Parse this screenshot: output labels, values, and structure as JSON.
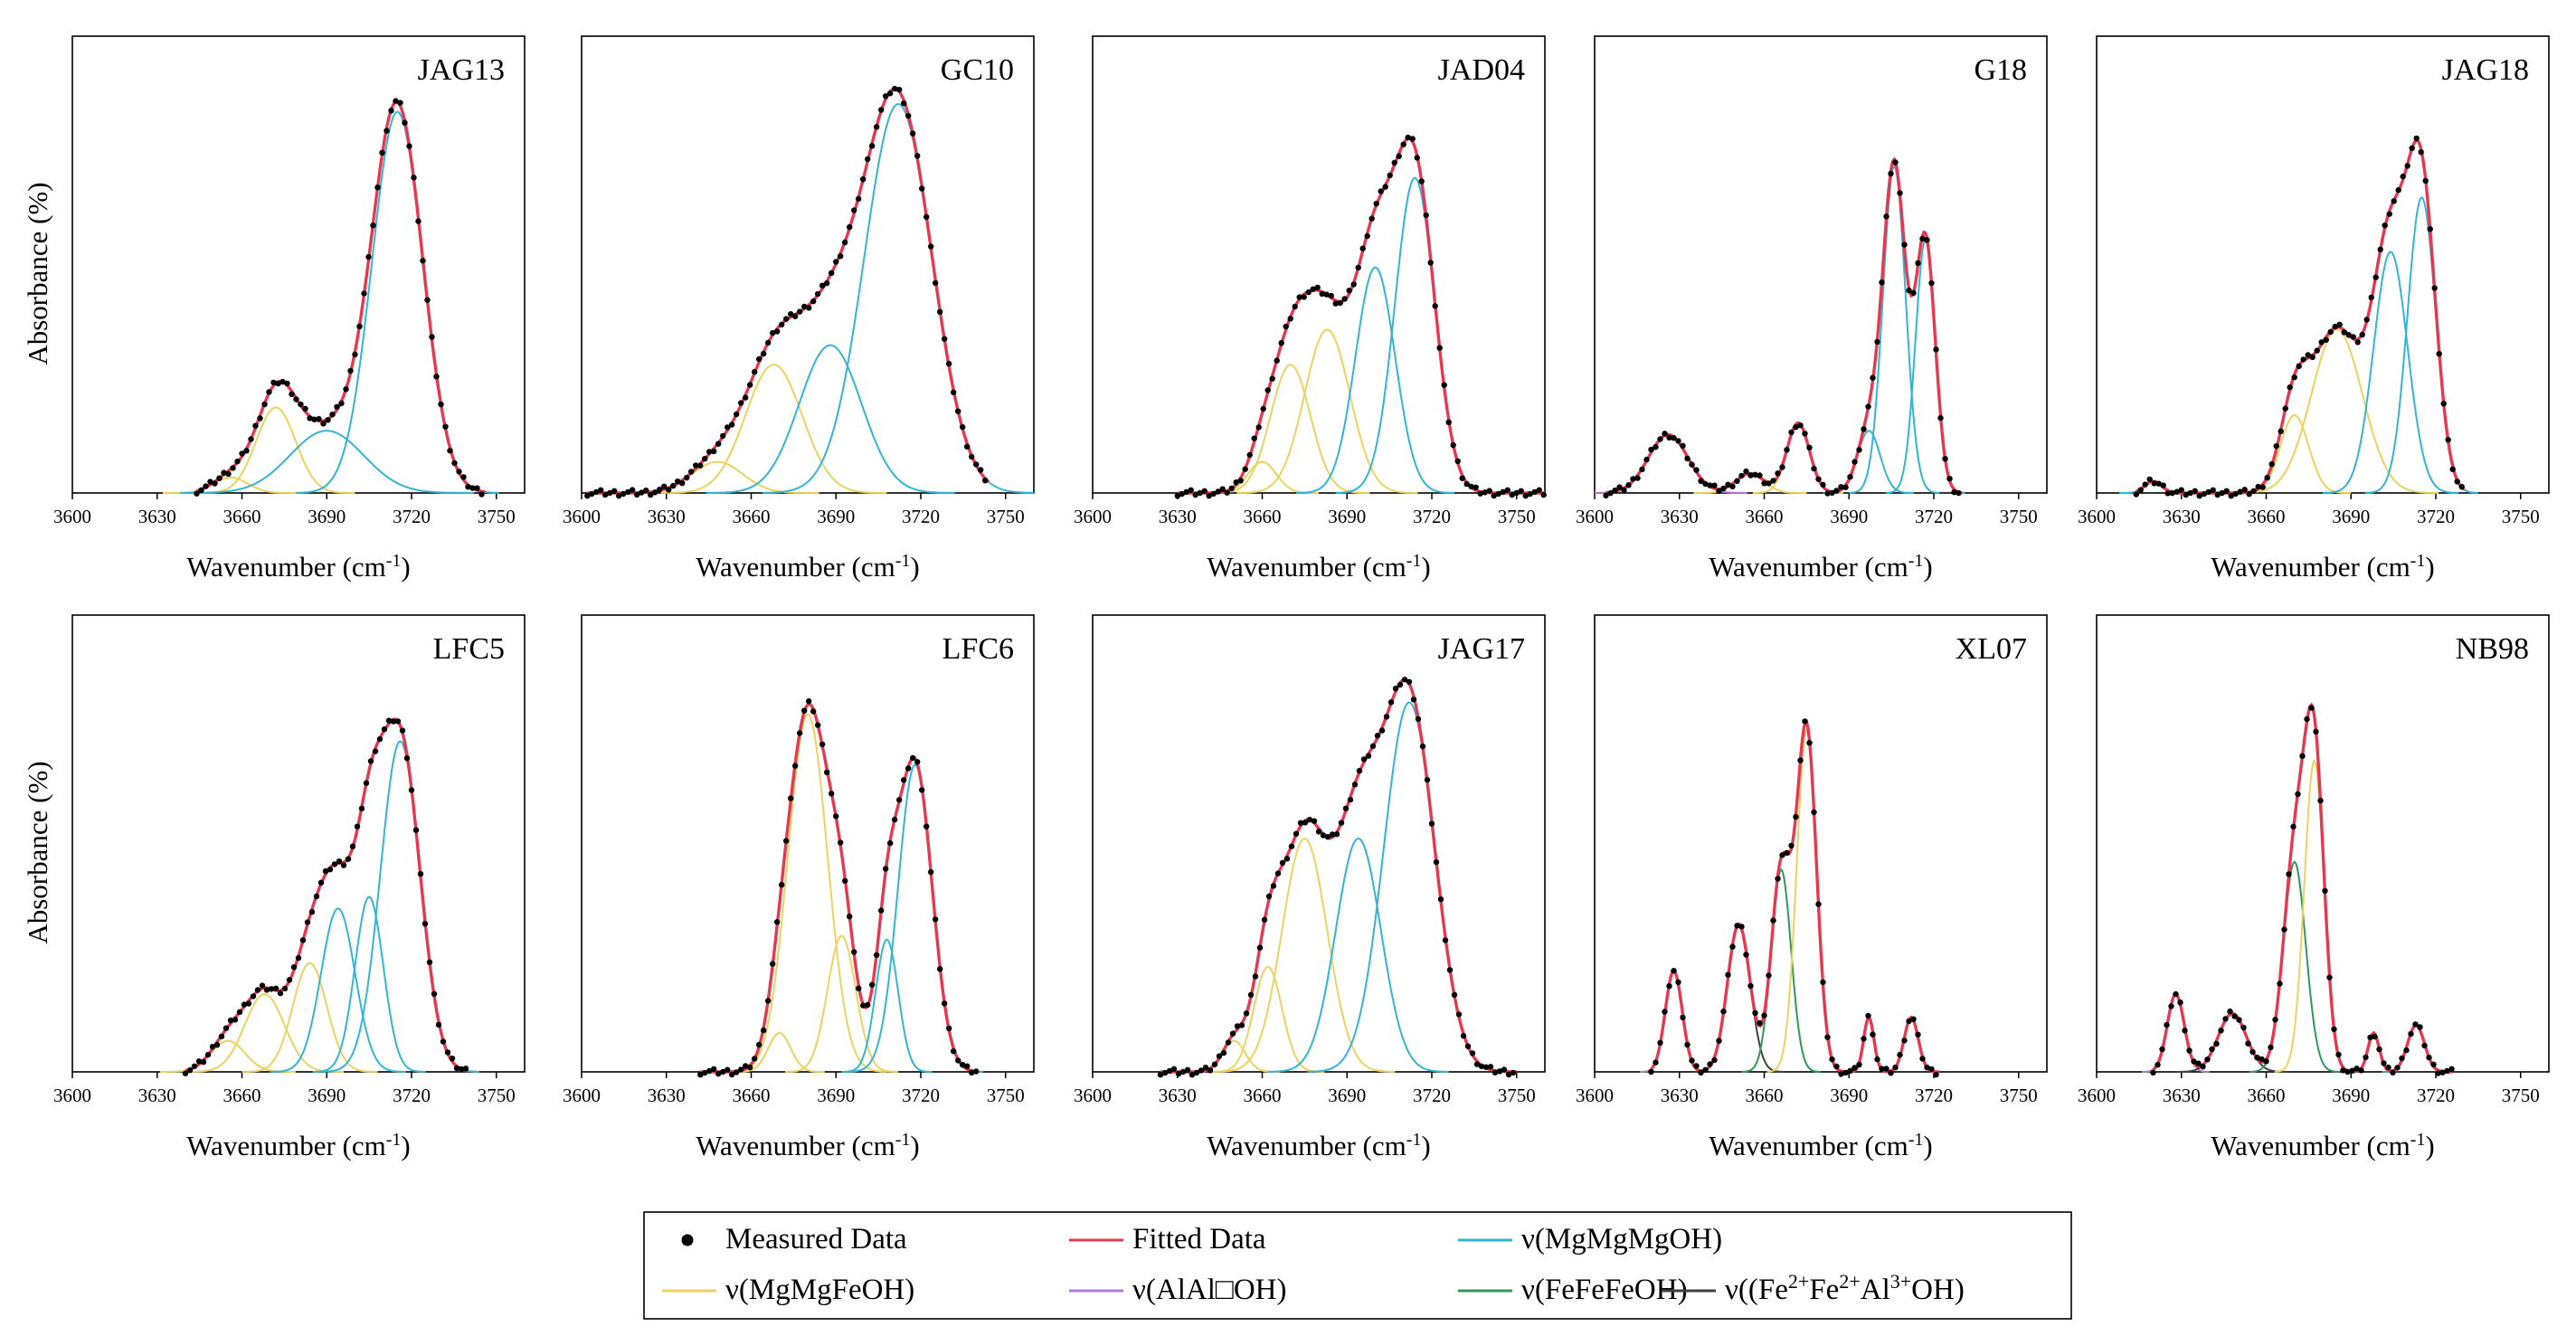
{
  "figure": {
    "ylabel": "Absorbance (%)",
    "xlabel": "Wavenumber (cm",
    "xlabel_sup": "-1",
    "xlabel_close": ")"
  },
  "legend": {
    "items": [
      {
        "key": "measured",
        "label": "Measured Data",
        "color": "#000000",
        "marker": "dot"
      },
      {
        "key": "fitted",
        "label": "Fitted Data",
        "color": "#e8384f",
        "marker": "line"
      },
      {
        "key": "mgmgmg",
        "label": "ν(MgMgMgOH)",
        "color": "#33b5d6",
        "marker": "line"
      },
      {
        "key": "mgmgfe",
        "label": "ν(MgMgFeOH)",
        "color": "#ecd25f",
        "marker": "line"
      },
      {
        "key": "alal",
        "label": "ν(AlAl□OH)",
        "color": "#b27ad6",
        "marker": "line"
      },
      {
        "key": "fefefe",
        "label": "ν(FeFeFeOH)",
        "color": "#2e9a57",
        "marker": "line"
      },
      {
        "key": "fefeal",
        "label": "ν((Fe",
        "label_parts": [
          "ν((Fe",
          "2+",
          "Fe",
          "2+",
          "Al",
          "3+",
          "OH)"
        ],
        "color": "#404040",
        "marker": "line"
      }
    ]
  },
  "chart_data": [
    {
      "id": "JAG13",
      "type": "line",
      "title": "JAG13",
      "xlim": [
        3600,
        3760
      ],
      "ylim": [
        0,
        1
      ],
      "xticks": [
        3600,
        3630,
        3660,
        3690,
        3720,
        3750
      ],
      "xlabel": "Wavenumber (cm-1)",
      "ylabel": "Absorbance (%)",
      "peaks": [
        {
          "type": "mgmgfe",
          "center": 3656,
          "height": 0.04,
          "width": 6
        },
        {
          "type": "mgmgfe",
          "center": 3672,
          "height": 0.22,
          "width": 7
        },
        {
          "type": "mgmgmg",
          "center": 3690,
          "height": 0.16,
          "width": 13
        },
        {
          "type": "mgmgmg",
          "center": 3715,
          "height": 0.98,
          "width": 9
        }
      ],
      "measured_range": [
        3644,
        3746
      ]
    },
    {
      "id": "GC10",
      "type": "line",
      "title": "GC10",
      "xlim": [
        3600,
        3760
      ],
      "ylim": [
        0,
        1
      ],
      "xticks": [
        3600,
        3630,
        3660,
        3690,
        3720,
        3750
      ],
      "xlabel": "Wavenumber (cm-1)",
      "ylabel": "Absorbance (%)",
      "peaks": [
        {
          "type": "mgmgfe",
          "center": 3648,
          "height": 0.08,
          "width": 9
        },
        {
          "type": "mgmgfe",
          "center": 3668,
          "height": 0.33,
          "width": 10
        },
        {
          "type": "mgmgmg",
          "center": 3688,
          "height": 0.38,
          "width": 11
        },
        {
          "type": "mgmgmg",
          "center": 3712,
          "height": 1.0,
          "width": 12
        }
      ],
      "measured_range": [
        3602,
        3744
      ]
    },
    {
      "id": "JAD04",
      "type": "line",
      "title": "JAD04",
      "xlim": [
        3600,
        3760
      ],
      "ylim": [
        0,
        1
      ],
      "xticks": [
        3600,
        3630,
        3660,
        3690,
        3720,
        3750
      ],
      "xlabel": "Wavenumber (cm-1)",
      "ylabel": "Absorbance (%)",
      "peaks": [
        {
          "type": "mgmgfe",
          "center": 3660,
          "height": 0.08,
          "width": 5
        },
        {
          "type": "mgmgfe",
          "center": 3670,
          "height": 0.33,
          "width": 7
        },
        {
          "type": "mgmgfe",
          "center": 3683,
          "height": 0.42,
          "width": 8
        },
        {
          "type": "mgmgmg",
          "center": 3700,
          "height": 0.58,
          "width": 7
        },
        {
          "type": "mgmgmg",
          "center": 3714,
          "height": 0.81,
          "width": 7
        }
      ],
      "measured_range": [
        3630,
        3760
      ]
    },
    {
      "id": "G18",
      "type": "line",
      "title": "G18",
      "xlim": [
        3600,
        3760
      ],
      "ylim": [
        0,
        1
      ],
      "xticks": [
        3600,
        3630,
        3660,
        3690,
        3720,
        3750
      ],
      "xlabel": "Wavenumber (cm-1)",
      "ylabel": "Absorbance (%)",
      "peaks": [
        {
          "type": "alal",
          "center": 3626,
          "height": 0.15,
          "width": 7
        },
        {
          "type": "mgmgfe",
          "center": 3655,
          "height": 0.05,
          "width": 5
        },
        {
          "type": "mgmgfe",
          "center": 3672,
          "height": 0.18,
          "width": 4
        },
        {
          "type": "mgmgmg",
          "center": 3697,
          "height": 0.16,
          "width": 4
        },
        {
          "type": "mgmgmg",
          "center": 3706,
          "height": 0.84,
          "width": 4
        },
        {
          "type": "mgmgmg",
          "center": 3717,
          "height": 0.65,
          "width": 3.5
        }
      ],
      "measured_range": [
        3604,
        3730
      ]
    },
    {
      "id": "JAG18",
      "type": "line",
      "title": "JAG18",
      "xlim": [
        3600,
        3760
      ],
      "ylim": [
        0,
        1
      ],
      "xticks": [
        3600,
        3630,
        3660,
        3690,
        3720,
        3750
      ],
      "xlabel": "Wavenumber (cm-1)",
      "ylabel": "Absorbance (%)",
      "peaks": [
        {
          "type": "mgmgmg",
          "center": 3620,
          "height": 0.03,
          "width": 3
        },
        {
          "type": "mgmgfe",
          "center": 3670,
          "height": 0.2,
          "width": 5
        },
        {
          "type": "mgmgfe",
          "center": 3685,
          "height": 0.42,
          "width": 9
        },
        {
          "type": "mgmgmg",
          "center": 3704,
          "height": 0.62,
          "width": 6
        },
        {
          "type": "mgmgmg",
          "center": 3715,
          "height": 0.76,
          "width": 5
        }
      ],
      "measured_range": [
        3614,
        3730
      ]
    },
    {
      "id": "LFC5",
      "type": "line",
      "title": "LFC5",
      "xlim": [
        3600,
        3760
      ],
      "ylim": [
        0,
        1
      ],
      "xticks": [
        3600,
        3630,
        3660,
        3690,
        3720,
        3750
      ],
      "xlabel": "Wavenumber (cm-1)",
      "ylabel": "Absorbance (%)",
      "peaks": [
        {
          "type": "mgmgfe",
          "center": 3655,
          "height": 0.08,
          "width": 6
        },
        {
          "type": "mgmgfe",
          "center": 3668,
          "height": 0.2,
          "width": 7
        },
        {
          "type": "mgmgfe",
          "center": 3684,
          "height": 0.28,
          "width": 6
        },
        {
          "type": "mgmgmg",
          "center": 3694,
          "height": 0.42,
          "width": 6
        },
        {
          "type": "mgmgmg",
          "center": 3705,
          "height": 0.45,
          "width": 5
        },
        {
          "type": "mgmgmg",
          "center": 3716,
          "height": 0.85,
          "width": 7
        }
      ],
      "measured_range": [
        3640,
        3740
      ]
    },
    {
      "id": "LFC6",
      "type": "line",
      "title": "LFC6",
      "xlim": [
        3600,
        3760
      ],
      "ylim": [
        0,
        1
      ],
      "xticks": [
        3600,
        3630,
        3660,
        3690,
        3720,
        3750
      ],
      "xlabel": "Wavenumber (cm-1)",
      "ylabel": "Absorbance (%)",
      "peaks": [
        {
          "type": "mgmgfe",
          "center": 3670,
          "height": 0.1,
          "width": 4
        },
        {
          "type": "mgmgfe",
          "center": 3680,
          "height": 0.92,
          "width": 7
        },
        {
          "type": "mgmgfe",
          "center": 3692,
          "height": 0.35,
          "width": 5
        },
        {
          "type": "mgmgmg",
          "center": 3708,
          "height": 0.34,
          "width": 4
        },
        {
          "type": "mgmgmg",
          "center": 3718,
          "height": 0.79,
          "width": 6
        }
      ],
      "measured_range": [
        3642,
        3740
      ]
    },
    {
      "id": "JAG17",
      "type": "line",
      "title": "JAG17",
      "xlim": [
        3600,
        3760
      ],
      "ylim": [
        0,
        1
      ],
      "xticks": [
        3600,
        3630,
        3660,
        3690,
        3720,
        3750
      ],
      "xlabel": "Wavenumber (cm-1)",
      "ylabel": "Absorbance (%)",
      "peaks": [
        {
          "type": "mgmgfe",
          "center": 3650,
          "height": 0.08,
          "width": 4
        },
        {
          "type": "mgmgfe",
          "center": 3662,
          "height": 0.27,
          "width": 5
        },
        {
          "type": "mgmgfe",
          "center": 3675,
          "height": 0.6,
          "width": 8
        },
        {
          "type": "mgmgmg",
          "center": 3694,
          "height": 0.6,
          "width": 8
        },
        {
          "type": "mgmgmg",
          "center": 3712,
          "height": 0.95,
          "width": 9
        }
      ],
      "measured_range": [
        3624,
        3750
      ]
    },
    {
      "id": "XL07",
      "type": "line",
      "title": "XL07",
      "xlim": [
        3600,
        3760
      ],
      "ylim": [
        0,
        1
      ],
      "xticks": [
        3600,
        3630,
        3660,
        3690,
        3720,
        3750
      ],
      "xlabel": "Wavenumber (cm-1)",
      "ylabel": "Absorbance (%)",
      "peaks": [
        {
          "type": "alal",
          "center": 3628,
          "height": 0.26,
          "width": 3
        },
        {
          "type": "fefeal",
          "center": 3651,
          "height": 0.38,
          "width": 4
        },
        {
          "type": "fefefe",
          "center": 3666,
          "height": 0.52,
          "width": 3.5
        },
        {
          "type": "mgmgfe",
          "center": 3675,
          "height": 0.88,
          "width": 3.5
        },
        {
          "type": "mgmgmg",
          "center": 3697,
          "height": 0.14,
          "width": 1.8
        },
        {
          "type": "mgmgmg",
          "center": 3712,
          "height": 0.14,
          "width": 2.5
        }
      ],
      "measured_range": [
        3620,
        3722
      ]
    },
    {
      "id": "NB98",
      "type": "line",
      "title": "NB98",
      "xlim": [
        3600,
        3760
      ],
      "ylim": [
        0,
        1
      ],
      "xticks": [
        3600,
        3630,
        3660,
        3690,
        3720,
        3750
      ],
      "xlabel": "Wavenumber (cm-1)",
      "ylabel": "Absorbance (%)",
      "peaks": [
        {
          "type": "alal",
          "center": 3628,
          "height": 0.2,
          "width": 3
        },
        {
          "type": "fefeal",
          "center": 3648,
          "height": 0.15,
          "width": 5
        },
        {
          "type": "fefefe",
          "center": 3670,
          "height": 0.54,
          "width": 4
        },
        {
          "type": "mgmgfe",
          "center": 3677,
          "height": 0.8,
          "width": 3.5
        },
        {
          "type": "mgmgmg",
          "center": 3698,
          "height": 0.1,
          "width": 2
        },
        {
          "type": "mgmgmg",
          "center": 3713,
          "height": 0.12,
          "width": 3
        }
      ],
      "measured_range": [
        3620,
        3726
      ]
    }
  ]
}
